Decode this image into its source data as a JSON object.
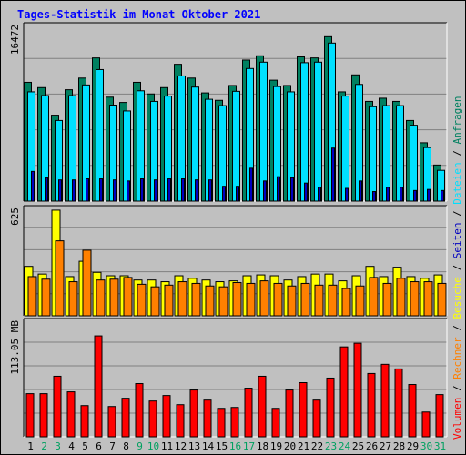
{
  "title": "Tages-Statistik im Monat Oktober 2021",
  "colors": {
    "background": "#c0c0c0",
    "panel": "#c0c0c0",
    "grid": "#808080",
    "title": "#0000ff",
    "anfragen": "#008060",
    "dateien": "#00e0ff",
    "seiten": "#0000c0",
    "besuche": "#ffff00",
    "rechner": "#ff8000",
    "volumen": "#ff0000",
    "weekday_label": "#000000",
    "weekend_label": "#00a060"
  },
  "legend": {
    "anfragen": "Anfragen",
    "dateien": "Dateien",
    "seiten": "Seiten",
    "besuche": "Besuche",
    "rechner": "Rechner",
    "volumen": "Volumen",
    "sep": "/"
  },
  "chart_data": [
    {
      "type": "bar",
      "panel": "requests",
      "scale_label": "16472",
      "ylim": [
        0,
        16472
      ],
      "categories": [
        "1",
        "2",
        "3",
        "4",
        "5",
        "6",
        "7",
        "8",
        "9",
        "10",
        "11",
        "12",
        "13",
        "14",
        "15",
        "16",
        "17",
        "18",
        "19",
        "20",
        "21",
        "22",
        "23",
        "24",
        "25",
        "26",
        "27",
        "28",
        "29",
        "30",
        "31"
      ],
      "weekend": [
        2,
        3,
        9,
        10,
        16,
        17,
        23,
        24,
        30,
        31
      ],
      "series": [
        {
          "name": "Anfragen",
          "values": [
            11200,
            10700,
            8100,
            10500,
            11600,
            13500,
            9800,
            9300,
            11200,
            10100,
            10700,
            12900,
            11600,
            10200,
            9500,
            10900,
            13300,
            13700,
            11400,
            10900,
            13600,
            13500,
            15500,
            10300,
            11900,
            9400,
            9700,
            9400,
            7600,
            5500,
            3400
          ]
        },
        {
          "name": "Dateien",
          "values": [
            10300,
            9950,
            7600,
            9950,
            10950,
            12400,
            9050,
            8500,
            10400,
            9400,
            9900,
            11800,
            10750,
            9600,
            9000,
            10350,
            12500,
            13100,
            10800,
            10300,
            13050,
            13100,
            14900,
            9900,
            11000,
            8900,
            9000,
            9000,
            7150,
            5050,
            2900
          ]
        },
        {
          "name": "Seiten",
          "values": [
            2800,
            2200,
            2000,
            2000,
            2100,
            2100,
            2000,
            1900,
            2100,
            2000,
            2100,
            2100,
            2000,
            2000,
            1400,
            1400,
            3100,
            1900,
            2300,
            2200,
            1700,
            1300,
            5000,
            1200,
            1900,
            900,
            1300,
            1300,
            1000,
            1100,
            1000
          ]
        }
      ]
    },
    {
      "type": "bar",
      "panel": "visits",
      "scale_label": "625",
      "ylim": [
        0,
        625
      ],
      "categories": [
        "1",
        "2",
        "3",
        "4",
        "5",
        "6",
        "7",
        "8",
        "9",
        "10",
        "11",
        "12",
        "13",
        "14",
        "15",
        "16",
        "17",
        "18",
        "19",
        "20",
        "21",
        "22",
        "23",
        "24",
        "25",
        "26",
        "27",
        "28",
        "29",
        "30",
        "31"
      ],
      "series": [
        {
          "name": "Besuche",
          "values": [
            290,
            245,
            620,
            230,
            320,
            255,
            235,
            235,
            210,
            210,
            200,
            235,
            220,
            210,
            200,
            205,
            235,
            240,
            235,
            210,
            230,
            245,
            245,
            205,
            235,
            290,
            230,
            285,
            230,
            220,
            240
          ]
        },
        {
          "name": "Rechner",
          "values": [
            230,
            215,
            440,
            200,
            385,
            210,
            215,
            225,
            185,
            170,
            180,
            200,
            190,
            175,
            170,
            195,
            190,
            205,
            190,
            175,
            190,
            180,
            180,
            160,
            175,
            225,
            190,
            220,
            200,
            200,
            190
          ]
        }
      ]
    },
    {
      "type": "bar",
      "panel": "volume",
      "scale_label": "113.05 MB",
      "ylim": [
        0,
        113.05
      ],
      "categories": [
        "1",
        "2",
        "3",
        "4",
        "5",
        "6",
        "7",
        "8",
        "9",
        "10",
        "11",
        "12",
        "13",
        "14",
        "15",
        "16",
        "17",
        "18",
        "19",
        "20",
        "21",
        "22",
        "23",
        "24",
        "25",
        "26",
        "27",
        "28",
        "29",
        "30",
        "31"
      ],
      "series": [
        {
          "name": "Volumen",
          "values": [
            47,
            47,
            66,
            49,
            34,
            110,
            33,
            42,
            58,
            39,
            45,
            35,
            51,
            40,
            31,
            32,
            53,
            66,
            31,
            51,
            59,
            40,
            64,
            98,
            102,
            69,
            79,
            74,
            57,
            27,
            46
          ]
        }
      ]
    }
  ]
}
